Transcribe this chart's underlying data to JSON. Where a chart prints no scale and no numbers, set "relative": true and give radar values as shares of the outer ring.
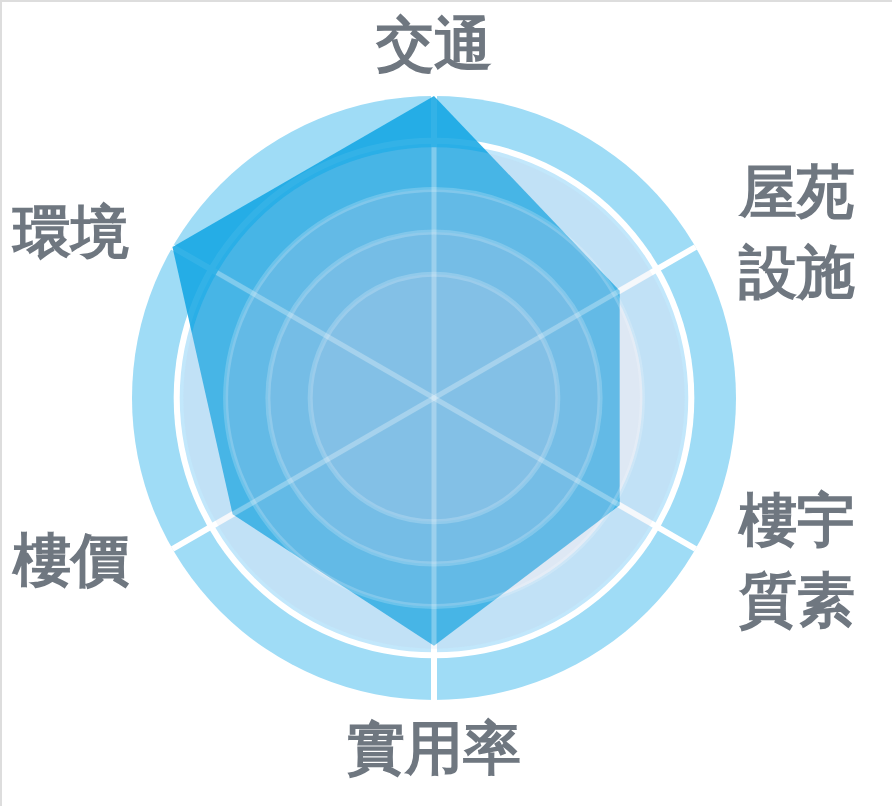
{
  "chart_data": {
    "type": "radar",
    "categories": [
      "交通",
      "屋苑設施",
      "樓宇質素",
      "實用率",
      "樓價",
      "環境"
    ],
    "relative": true,
    "grid": true,
    "series": [
      {
        "color": "#0fa5e3",
        "values": [
          1.0,
          0.71,
          0.71,
          0.82,
          0.77,
          1.0
        ]
      }
    ]
  }
}
